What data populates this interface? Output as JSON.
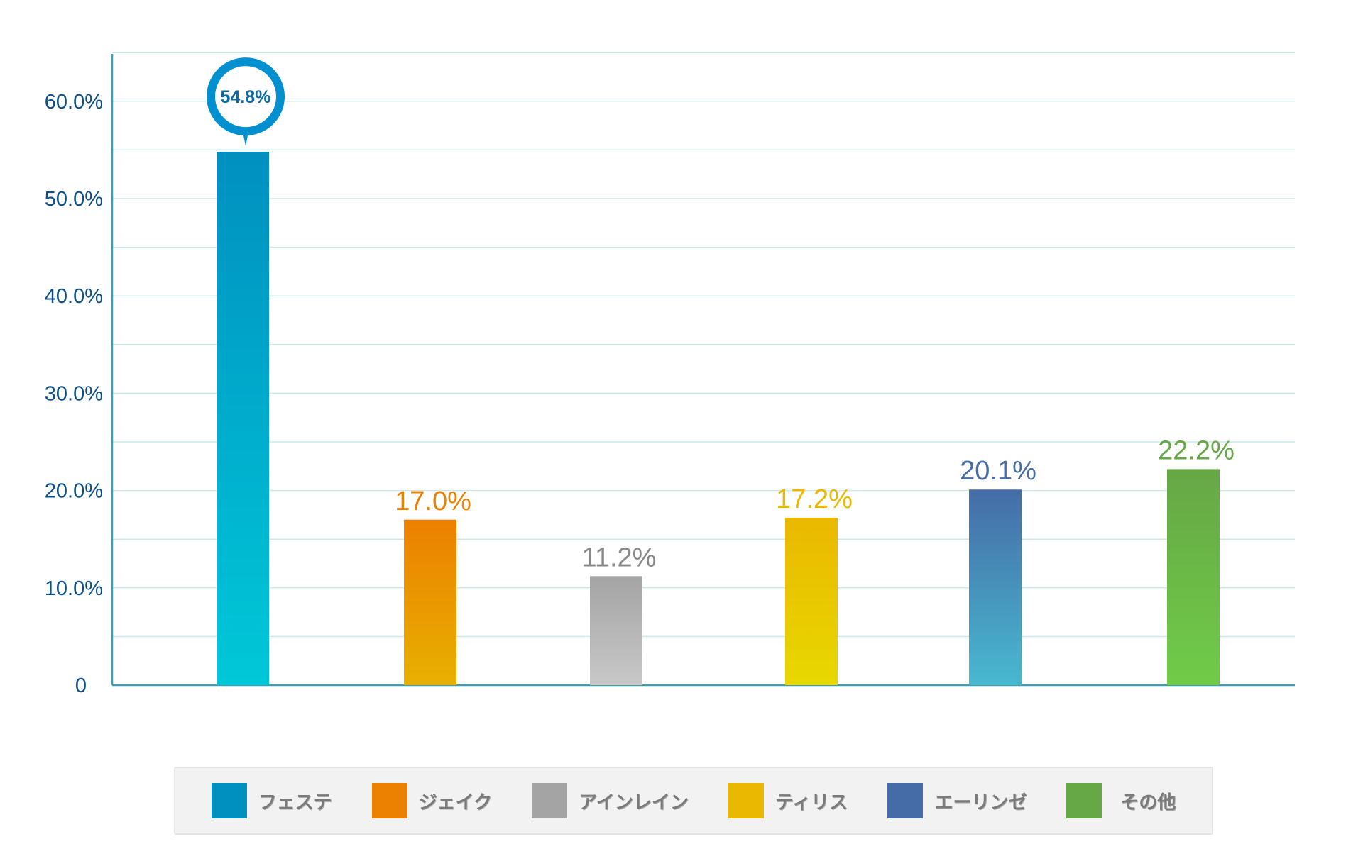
{
  "chart_data": {
    "type": "bar",
    "title": "",
    "xlabel": "",
    "ylabel": "",
    "ylim": [
      0,
      65
    ],
    "yticks": [
      0,
      10,
      20,
      30,
      40,
      50,
      60
    ],
    "ytick_labels": [
      "0",
      "10.0%",
      "20.0%",
      "30.0%",
      "40.0%",
      "50.0%",
      "60.0%"
    ],
    "grid": true,
    "legend_position": "bottom",
    "categories": [
      "フェステ",
      "ジェイク",
      "アインレイン",
      "ティリス",
      "エーリンゼ",
      "その他"
    ],
    "values": [
      54.8,
      17.0,
      11.2,
      17.2,
      20.1,
      22.2
    ],
    "data_labels": [
      "54.8%",
      "17.0%",
      "11.2%",
      "17.2%",
      "20.1%",
      "22.2%"
    ],
    "colors": [
      "#0090c0",
      "#ec8000",
      "#a4a4a4",
      "#eab800",
      "#456ca6",
      "#66a746"
    ],
    "gradient_bottom": [
      "#00c8d8",
      "#e8b000",
      "#c8c8c8",
      "#e8d800",
      "#48b8d0",
      "#70cc48"
    ],
    "label_colors": [
      "#0a6aa0",
      "#ec8000",
      "#888888",
      "#eab800",
      "#456ca6",
      "#66a746"
    ],
    "highlight_index": 0
  }
}
